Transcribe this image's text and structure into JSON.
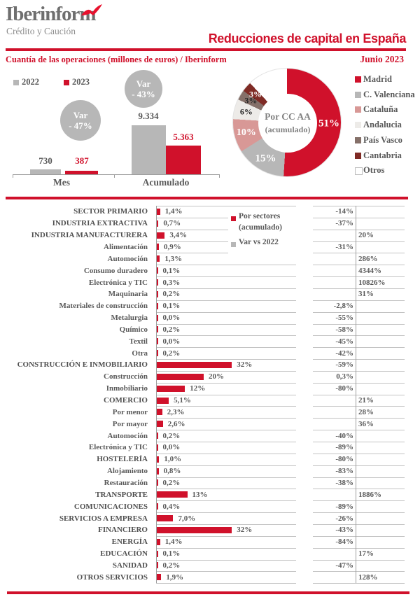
{
  "header": {
    "logo_title": "Iberinform",
    "logo_subtitle": "Crédito y Caución",
    "title": "Reducciones de capital en España",
    "subtitle": "Cuantía de las operaciones (millones de euros) / Iberinform",
    "period": "Junio 2023"
  },
  "colors": {
    "brand_red": "#d0112b",
    "series_gray": "#b7b7b7",
    "dark_text": "#595959",
    "pink": "#d89896",
    "light_gray": "#edebe8",
    "brown": "#857069",
    "maroon": "#7f2b25"
  },
  "chart_data": [
    {
      "id": "operations-bar-chart",
      "type": "bar",
      "title": "Cuantía de las operaciones (millones de euros)",
      "categories": [
        "Mes",
        "Acumulado"
      ],
      "series": [
        {
          "name": "2022",
          "color": "#b7b7b7",
          "values": [
            730,
            9334
          ],
          "labels": [
            "730",
            "9.334"
          ]
        },
        {
          "name": "2023",
          "color": "#d0112b",
          "values": [
            387,
            5363
          ],
          "labels": [
            "387",
            "5.363"
          ]
        }
      ],
      "annotations": [
        {
          "category": "Mes",
          "text_lines": [
            "Var",
            "- 47%"
          ]
        },
        {
          "category": "Acumulado",
          "text_lines": [
            "Var",
            "- 43%"
          ]
        }
      ]
    },
    {
      "id": "ccaa-donut",
      "type": "pie",
      "center_title": "Por CC AA",
      "center_subtitle": "(acumulado)",
      "slices": [
        {
          "name": "Madrid",
          "value": 51,
          "label": "51%",
          "color": "#d0112b",
          "label_color": "#ffffff"
        },
        {
          "name": "C. Valenciana",
          "value": 15,
          "label": "15%",
          "color": "#b7b7b7",
          "label_color": "#ffffff"
        },
        {
          "name": "Cataluña",
          "value": 10,
          "label": "10%",
          "color": "#d89896",
          "label_color": "#ffffff"
        },
        {
          "name": "Andalucia",
          "value": 6,
          "label": "6%",
          "color": "#edebe8",
          "label_color": "#262626"
        },
        {
          "name": "País Vasco",
          "value": 3,
          "label": "3%",
          "color": "#857069",
          "label_color": "#262626"
        },
        {
          "name": "Cantabria",
          "value": 3,
          "label": "3%",
          "color": "#7f2b25",
          "label_color": "#ffffff"
        },
        {
          "name": "Otros",
          "value": 12,
          "label": "",
          "color": "#ffffff",
          "label_color": "#262626"
        }
      ],
      "legend_position": "right"
    },
    {
      "id": "sector-chart",
      "type": "bar",
      "legend_series_line1": "Por sectores",
      "legend_series_line2": "(acumulado)",
      "legend_var": "Var vs 2022",
      "rows": [
        {
          "label": "SECTOR PRIMARIO",
          "major": true,
          "value": 1.4,
          "value_label": "1,4%",
          "var_label": "-14%",
          "var_side": "left"
        },
        {
          "label": "INDUSTRIA EXTRACTIVA",
          "major": true,
          "value": 0.7,
          "value_label": "0,7%",
          "var_label": "-37%",
          "var_side": "left"
        },
        {
          "label": "INDUSTRIA MANUFACTURERA",
          "major": true,
          "value": 3.4,
          "value_label": "3,4%",
          "var_label": "20%",
          "var_side": "right"
        },
        {
          "label": "Alimentación",
          "major": false,
          "value": 0.9,
          "value_label": "0,9%",
          "var_label": "-31%",
          "var_side": "left"
        },
        {
          "label": "Automoción",
          "major": false,
          "value": 1.3,
          "value_label": "1,3%",
          "var_label": "286%",
          "var_side": "right"
        },
        {
          "label": "Consumo duradero",
          "major": false,
          "value": 0.1,
          "value_label": "0,1%",
          "var_label": "4344%",
          "var_side": "right"
        },
        {
          "label": "Electrónica y TIC",
          "major": false,
          "value": 0.3,
          "value_label": "0,3%",
          "var_label": "10826%",
          "var_side": "right"
        },
        {
          "label": "Maquinaria",
          "major": false,
          "value": 0.2,
          "value_label": "0,2%",
          "var_label": "31%",
          "var_side": "right"
        },
        {
          "label": "Materiales de construcción",
          "major": false,
          "value": 0.1,
          "value_label": "0,1%",
          "var_label": "-2,8%",
          "var_side": "left"
        },
        {
          "label": "Metalurgia",
          "major": false,
          "value": 0.0,
          "value_label": "0,0%",
          "var_label": "-55%",
          "var_side": "left"
        },
        {
          "label": "Químico",
          "major": false,
          "value": 0.2,
          "value_label": "0,2%",
          "var_label": "-58%",
          "var_side": "left"
        },
        {
          "label": "Textil",
          "major": false,
          "value": 0.0,
          "value_label": "0,0%",
          "var_label": "-45%",
          "var_side": "left"
        },
        {
          "label": "Otra",
          "major": false,
          "value": 0.2,
          "value_label": "0,2%",
          "var_label": "-42%",
          "var_side": "left"
        },
        {
          "label": "CONSTRUCCIÓN E INMOBILIARIO",
          "major": true,
          "value": 32,
          "value_label": "32%",
          "var_label": "-59%",
          "var_side": "left"
        },
        {
          "label": "Construcción",
          "major": false,
          "value": 20,
          "value_label": "20%",
          "var_label": "0,3%",
          "var_side": "left"
        },
        {
          "label": "Inmobiliario",
          "major": false,
          "value": 12,
          "value_label": "12%",
          "var_label": "-80%",
          "var_side": "left"
        },
        {
          "label": "COMERCIO",
          "major": true,
          "value": 5.1,
          "value_label": "5,1%",
          "var_label": "21%",
          "var_side": "right"
        },
        {
          "label": "Por menor",
          "major": false,
          "value": 2.3,
          "value_label": "2,3%",
          "var_label": "28%",
          "var_side": "right"
        },
        {
          "label": "Por mayor",
          "major": false,
          "value": 2.6,
          "value_label": "2,6%",
          "var_label": "36%",
          "var_side": "right"
        },
        {
          "label": "Automoción",
          "major": false,
          "value": 0.2,
          "value_label": "0,2%",
          "var_label": "-40%",
          "var_side": "left"
        },
        {
          "label": "Electrónica y TIC",
          "major": false,
          "value": 0.0,
          "value_label": "0,0%",
          "var_label": "-89%",
          "var_side": "left"
        },
        {
          "label": "HOSTELERÍA",
          "major": true,
          "value": 1.0,
          "value_label": "1,0%",
          "var_label": "-80%",
          "var_side": "left"
        },
        {
          "label": "Alojamiento",
          "major": false,
          "value": 0.8,
          "value_label": "0,8%",
          "var_label": "-83%",
          "var_side": "left"
        },
        {
          "label": "Restauración",
          "major": false,
          "value": 0.2,
          "value_label": "0,2%",
          "var_label": "-38%",
          "var_side": "left"
        },
        {
          "label": "TRANSPORTE",
          "major": true,
          "value": 13,
          "value_label": "13%",
          "var_label": "1886%",
          "var_side": "right"
        },
        {
          "label": "COMUNICACIONES",
          "major": true,
          "value": 0.4,
          "value_label": "0,4%",
          "var_label": "-89%",
          "var_side": "left"
        },
        {
          "label": "SERVICIOS A EMPRESA",
          "major": true,
          "value": 7.0,
          "value_label": "7,0%",
          "var_label": "-26%",
          "var_side": "left"
        },
        {
          "label": "FINANCIERO",
          "major": true,
          "value": 32,
          "value_label": "32%",
          "var_label": "-43%",
          "var_side": "left"
        },
        {
          "label": "ENERGÍA",
          "major": true,
          "value": 1.4,
          "value_label": "1,4%",
          "var_label": "-84%",
          "var_side": "left"
        },
        {
          "label": "EDUCACIÓN",
          "major": true,
          "value": 0.1,
          "value_label": "0,1%",
          "var_label": "17%",
          "var_side": "right"
        },
        {
          "label": "SANIDAD",
          "major": true,
          "value": 0.2,
          "value_label": "0,2%",
          "var_label": "-47%",
          "var_side": "left"
        },
        {
          "label": "OTROS SERVICIOS",
          "major": true,
          "value": 1.9,
          "value_label": "1,9%",
          "var_label": "128%",
          "var_side": "right"
        }
      ]
    }
  ]
}
